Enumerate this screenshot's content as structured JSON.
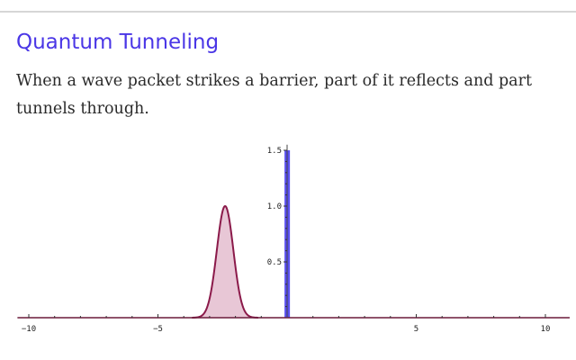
{
  "page": {
    "title": "Quantum Tunneling",
    "description": "When a wave packet strikes a barrier, part of it reflects and part tunnels through."
  },
  "chart_data": {
    "type": "area",
    "title": "",
    "xlabel": "",
    "ylabel": "",
    "xlim": [
      -10.3,
      10.8
    ],
    "ylim": [
      0,
      1.55
    ],
    "x_ticks": [
      -10,
      -5,
      5,
      10
    ],
    "x_tick_labels": [
      "−10",
      "−5",
      "5",
      "10"
    ],
    "y_ticks": [
      0.5,
      1.0,
      1.5
    ],
    "y_tick_labels": [
      "0.5",
      "1.0",
      "1.5"
    ],
    "grid": false,
    "legend": "none",
    "series": [
      {
        "kind": "gaussian-packet",
        "center": -2.4,
        "amplitude": 1.0,
        "sigma": 0.32,
        "color": "#8b1a4a",
        "fill": "#e8c7d6"
      },
      {
        "kind": "barrier",
        "x0": -0.1,
        "x1": 0.1,
        "height": 1.5,
        "color": "#5a50f0"
      }
    ],
    "axis_color": "#6b1a3a"
  }
}
